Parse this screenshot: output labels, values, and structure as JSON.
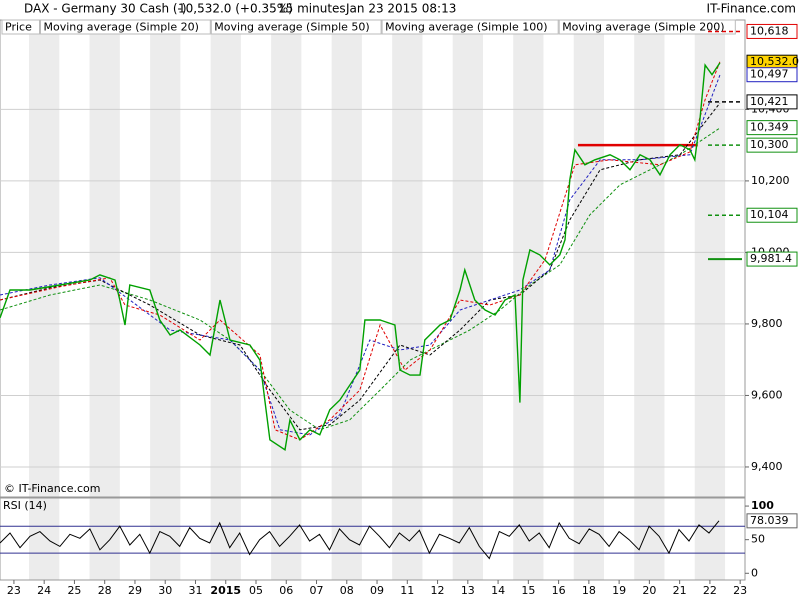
{
  "chart_data": {
    "type": "line",
    "title": "DAX - Germany 30 Cash (-)",
    "last_price": "10,532.0 (+0.35%)",
    "interval": "15 minutes",
    "date": "Jan 23 2015 08:13",
    "source": "IT-Finance.com",
    "copyright": "© IT-Finance.com",
    "xlim": [
      -0.46,
      24.16
    ],
    "xticks": [
      {
        "value": 0,
        "label": "23"
      },
      {
        "value": 1,
        "label": "24"
      },
      {
        "value": 2,
        "label": "25"
      },
      {
        "value": 3,
        "label": "28"
      },
      {
        "value": 4,
        "label": "29"
      },
      {
        "value": 5,
        "label": "30"
      },
      {
        "value": 6,
        "label": "31"
      },
      {
        "value": 7,
        "label": "2015"
      },
      {
        "value": 8,
        "label": "05"
      },
      {
        "value": 9,
        "label": "06"
      },
      {
        "value": 10,
        "label": "07"
      },
      {
        "value": 11,
        "label": "08"
      },
      {
        "value": 12,
        "label": "09"
      },
      {
        "value": 13,
        "label": "11"
      },
      {
        "value": 14,
        "label": "12"
      },
      {
        "value": 15,
        "label": "13"
      },
      {
        "value": 16,
        "label": "14"
      },
      {
        "value": 17,
        "label": "15"
      },
      {
        "value": 18,
        "label": "16"
      },
      {
        "value": 19,
        "label": "18"
      },
      {
        "value": 20,
        "label": "19"
      },
      {
        "value": 21,
        "label": "20"
      },
      {
        "value": 22,
        "label": "21"
      },
      {
        "value": 23,
        "label": "22"
      },
      {
        "value": 24,
        "label": "23"
      }
    ],
    "ylim": [
      9316,
      10650
    ],
    "yticks": [
      {
        "value": 9400,
        "label": "9,400"
      },
      {
        "value": 9600,
        "label": "9,600"
      },
      {
        "value": 9800,
        "label": "9,800"
      },
      {
        "value": 10000,
        "label": "10,000"
      },
      {
        "value": 10200,
        "label": "10,200"
      },
      {
        "value": 10400,
        "label": "10,400"
      }
    ],
    "series": [
      {
        "name": "Price",
        "color": "#00a000",
        "style": "solid",
        "x": [
          -0.46,
          -0.13,
          0.53,
          1.52,
          2.51,
          2.84,
          3.34,
          3.5,
          3.67,
          3.83,
          4.49,
          4.82,
          5.16,
          5.49,
          6.15,
          6.48,
          6.81,
          7.14,
          7.8,
          8.13,
          8.29,
          8.46,
          8.96,
          9.12,
          9.45,
          9.78,
          10.11,
          10.44,
          10.77,
          11.1,
          11.43,
          11.6,
          12.1,
          12.59,
          12.76,
          13.09,
          13.42,
          13.58,
          14.08,
          14.41,
          14.74,
          14.9,
          15.23,
          15.57,
          15.9,
          16.23,
          16.56,
          16.72,
          16.82,
          17.05,
          17.38,
          17.71,
          18.04,
          18.21,
          18.37,
          18.54,
          18.87,
          19.2,
          19.7,
          20.03,
          20.36,
          20.69,
          21.02,
          21.35,
          21.68,
          22.01,
          22.34,
          22.5,
          22.67,
          22.84,
          23.07,
          23.33
        ],
        "values": [
          9817,
          9895,
          9895,
          9909,
          9923,
          9937,
          9923,
          9867,
          9797,
          9909,
          9895,
          9811,
          9769,
          9783,
          9741,
          9713,
          9867,
          9755,
          9741,
          9699,
          9587,
          9476,
          9448,
          9531,
          9476,
          9504,
          9490,
          9560,
          9587,
          9629,
          9671,
          9811,
          9811,
          9797,
          9671,
          9657,
          9657,
          9755,
          9797,
          9811,
          9895,
          9951,
          9867,
          9839,
          9825,
          9867,
          9881,
          9580,
          9923,
          10007,
          9993,
          9965,
          9993,
          10035,
          10203,
          10287,
          10245,
          10259,
          10273,
          10259,
          10231,
          10273,
          10259,
          10217,
          10273,
          10301,
          10287,
          10259,
          10371,
          10524,
          10497,
          10530
        ]
      },
      {
        "name": "Moving average (Simple 20)",
        "color": "#e00000",
        "style": "dashed",
        "x": [
          -0.46,
          1.52,
          3.17,
          3.67,
          4.82,
          6.15,
          6.81,
          8.13,
          8.63,
          9.45,
          10.44,
          11.43,
          12.1,
          12.92,
          13.75,
          14.74,
          15.73,
          16.72,
          17.55,
          18.54,
          19.7,
          21.35,
          22.34,
          22.84,
          23.33
        ],
        "values": [
          9867,
          9904,
          9929,
          9853,
          9825,
          9755,
          9811,
          9713,
          9504,
          9476,
          9532,
          9615,
          9797,
          9671,
          9727,
          9867,
          9853,
          9881,
          9979,
          10245,
          10259,
          10245,
          10281,
          10427,
          10533
        ]
      },
      {
        "name": "Moving average (Simple 50)",
        "color": "#2020c0",
        "style": "dashed",
        "x": [
          -0.46,
          1.19,
          2.84,
          3.83,
          5.16,
          7.14,
          8.13,
          8.79,
          9.78,
          10.77,
          11.76,
          12.76,
          13.75,
          14.74,
          15.73,
          16.72,
          17.71,
          18.37,
          19.37,
          20.69,
          22.34,
          23.33
        ],
        "values": [
          9881,
          9909,
          9929,
          9867,
          9783,
          9755,
          9671,
          9504,
          9490,
          9546,
          9755,
          9727,
          9741,
          9839,
          9867,
          9895,
          9951,
          10147,
          10259,
          10259,
          10273,
          10496
        ]
      },
      {
        "name": "Moving average (Simple 100)",
        "color": "#000000",
        "style": "dashed",
        "x": [
          -0.46,
          1.19,
          2.84,
          4.49,
          6.15,
          7.47,
          8.46,
          9.45,
          10.44,
          11.43,
          12.76,
          13.75,
          14.74,
          15.73,
          16.72,
          17.71,
          18.37,
          19.37,
          20.69,
          22.01,
          23.33
        ],
        "values": [
          9867,
          9901,
          9923,
          9853,
          9769,
          9741,
          9615,
          9504,
          9518,
          9587,
          9741,
          9713,
          9783,
          9867,
          9881,
          9951,
          10091,
          10231,
          10259,
          10273,
          10418
        ]
      },
      {
        "name": "Moving average (Simple 200)",
        "color": "#109010",
        "style": "dashed",
        "x": [
          -0.46,
          1.19,
          2.84,
          4.49,
          6.15,
          7.14,
          8.13,
          9.12,
          10.11,
          11.1,
          12.1,
          13.09,
          14.08,
          15.07,
          16.06,
          17.05,
          18.04,
          19.03,
          20.03,
          21.02,
          22.01,
          23.33
        ],
        "values": [
          9839,
          9881,
          9909,
          9867,
          9811,
          9755,
          9671,
          9559,
          9504,
          9532,
          9615,
          9699,
          9741,
          9783,
          9839,
          9909,
          9965,
          10105,
          10189,
          10231,
          10273,
          10348
        ]
      }
    ],
    "resistance": {
      "value": 10300,
      "x": [
        18.64,
        22.6
      ],
      "color": "#e00000"
    },
    "levels": [
      {
        "value": 10618,
        "label": "10,618",
        "color": "#e00000",
        "fill": "#ffffff",
        "line": "dashed"
      },
      {
        "value": 10532.0,
        "label": "10,532.0",
        "color": "#000000",
        "fill": "#ffd400",
        "line": null
      },
      {
        "value": 10497,
        "label": "10,497",
        "color": "#2020c0",
        "fill": "#ffffff",
        "line": null
      },
      {
        "value": 10421,
        "label": "10,421",
        "color": "#000000",
        "fill": "#ffffff",
        "line": "dashed"
      },
      {
        "value": 10349,
        "label": "10,349",
        "color": "#109010",
        "fill": "#ffffff",
        "line": null
      },
      {
        "value": 10300,
        "label": "10,300",
        "color": "#109010",
        "fill": "#ffffff",
        "line": "dashed"
      },
      {
        "value": 10104,
        "label": "10,104",
        "color": "#109010",
        "fill": "#ffffff",
        "line": "dashed"
      },
      {
        "value": 9981.4,
        "label": "9,981.4",
        "color": "#109010",
        "fill": "#ffffff",
        "line": "solid"
      }
    ],
    "rsi": {
      "name": "RSI (14)",
      "color": "#000000",
      "ylim": [
        -10,
        112
      ],
      "yticks": [
        0,
        50,
        100
      ],
      "levels": [
        30,
        70
      ],
      "level_color": "#303090",
      "x": [
        -0.46,
        -0.13,
        0.2,
        0.53,
        0.86,
        1.19,
        1.52,
        1.85,
        2.18,
        2.51,
        2.84,
        3.17,
        3.5,
        3.83,
        4.16,
        4.49,
        4.82,
        5.15,
        5.48,
        5.81,
        6.14,
        6.47,
        6.8,
        7.13,
        7.46,
        7.79,
        8.12,
        8.45,
        8.78,
        9.11,
        9.44,
        9.77,
        10.1,
        10.43,
        10.76,
        11.09,
        11.42,
        11.75,
        12.08,
        12.41,
        12.74,
        13.07,
        13.4,
        13.73,
        14.06,
        14.39,
        14.72,
        15.05,
        15.38,
        15.71,
        16.04,
        16.37,
        16.7,
        17.03,
        17.36,
        17.69,
        18.02,
        18.35,
        18.68,
        19.01,
        19.34,
        19.67,
        20,
        20.33,
        20.66,
        20.99,
        21.32,
        21.65,
        21.98,
        22.31,
        22.64,
        22.97,
        23.3
      ],
      "values": [
        45,
        60,
        38,
        55,
        62,
        48,
        40,
        58,
        52,
        66,
        35,
        50,
        70,
        42,
        58,
        30,
        62,
        55,
        40,
        68,
        52,
        45,
        75,
        38,
        60,
        28,
        50,
        62,
        40,
        55,
        72,
        48,
        58,
        35,
        66,
        50,
        42,
        70,
        55,
        38,
        60,
        48,
        64,
        30,
        58,
        52,
        45,
        68,
        40,
        22,
        62,
        55,
        72,
        48,
        60,
        38,
        75,
        52,
        44,
        66,
        58,
        40,
        62,
        50,
        35,
        70,
        55,
        30,
        65,
        48,
        72,
        60,
        78.039
      ]
    }
  }
}
